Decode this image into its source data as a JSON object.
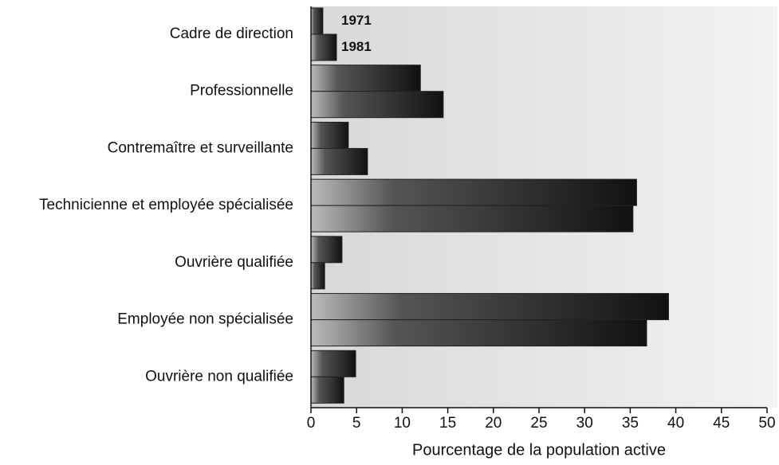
{
  "chart_data": {
    "type": "barh",
    "xlabel": "Pourcentage de la population active",
    "categories": [
      "Cadre de direction",
      "Professionnelle",
      "Contremaître et surveillante",
      "Technicienne et employée spécialisée",
      "Ouvrière qualifiée",
      "Employée non spécialisée",
      "Ouvrière non qualifiée"
    ],
    "series": [
      {
        "name": "1971",
        "color": "#222222",
        "values": [
          1.3,
          12.0,
          4.1,
          35.7,
          3.4,
          39.2,
          4.9
        ]
      },
      {
        "name": "1981",
        "color": "#222222",
        "values": [
          2.8,
          14.5,
          6.2,
          35.3,
          1.5,
          36.8,
          3.6
        ]
      }
    ],
    "xlim": [
      0,
      50
    ],
    "xticks": [
      0,
      5,
      10,
      15,
      20,
      25,
      30,
      35,
      40,
      45,
      50
    ]
  }
}
